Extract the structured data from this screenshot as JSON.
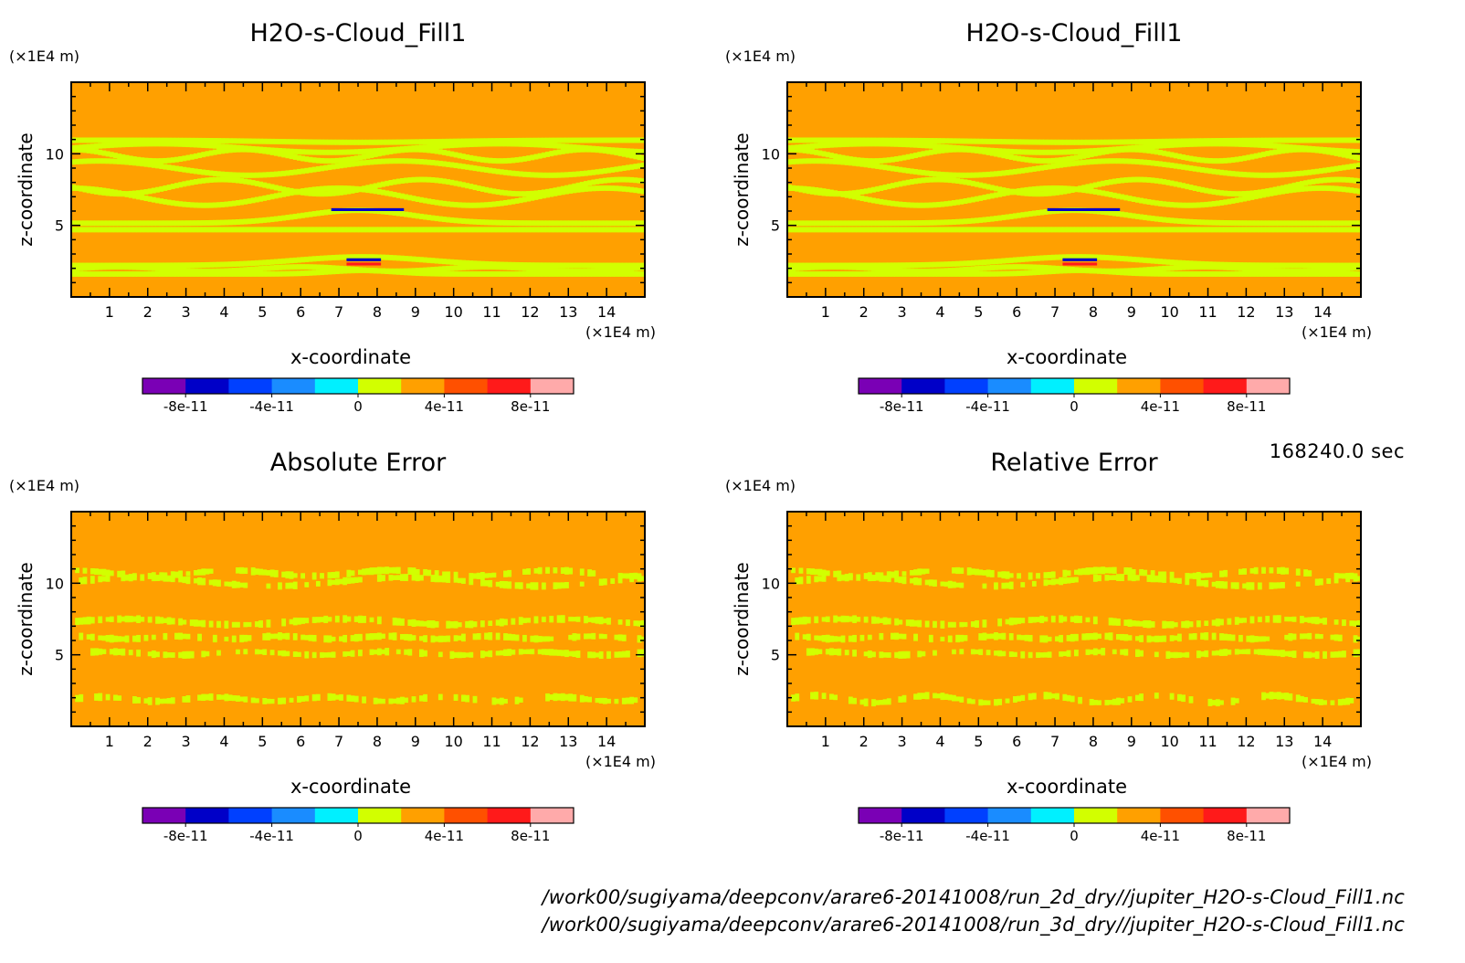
{
  "colorbar": {
    "colors": [
      "#7a00b5",
      "#0000c8",
      "#0040ff",
      "#1a8cff",
      "#00f0ff",
      "#d2ff00",
      "#ffa000",
      "#ff5000",
      "#ff1a1a",
      "#ffaaaa"
    ],
    "tick_labels": [
      "-8e-11",
      "-4e-11",
      "0",
      "4e-11",
      "8e-11"
    ]
  },
  "time_label": "168240.0 sec",
  "files": [
    "/work00/sugiyama/deepconv/arare6-20141008/run_2d_dry//jupiter_H2O-s-Cloud_Fill1.nc",
    "/work00/sugiyama/deepconv/arare6-20141008/run_3d_dry//jupiter_H2O-s-Cloud_Fill1.nc"
  ],
  "chart_data": [
    {
      "type": "heatmap",
      "title": "H2O-s-Cloud_Fill1",
      "xlabel": "x-coordinate",
      "xunit": "(×1E4 m)",
      "ylabel": "z-coordinate",
      "yunit": "(×1E4 m)",
      "xlim": [
        0,
        15
      ],
      "ylim": [
        0,
        15
      ],
      "xticks": [
        "1",
        "2",
        "3",
        "4",
        "5",
        "6",
        "7",
        "8",
        "9",
        "10",
        "11",
        "12",
        "13",
        "14"
      ],
      "yticks": [
        "5",
        "10"
      ],
      "background_value": 2e-11,
      "contour_value": 0,
      "field": "cloud",
      "extremes": [
        {
          "x": [
            6.8,
            8.7
          ],
          "z": [
            6.0,
            6.2
          ],
          "value": -8e-11
        },
        {
          "x": [
            7.2,
            8.1
          ],
          "z": [
            2.5,
            2.7
          ],
          "value": -8e-11
        },
        {
          "x": [
            7.2,
            8.1
          ],
          "z": [
            2.2,
            2.4
          ],
          "value": 6e-11
        }
      ]
    },
    {
      "type": "heatmap",
      "title": "H2O-s-Cloud_Fill1",
      "xlabel": "x-coordinate",
      "xunit": "(×1E4 m)",
      "ylabel": "z-coordinate",
      "yunit": "(×1E4 m)",
      "xlim": [
        0,
        15
      ],
      "ylim": [
        0,
        15
      ],
      "xticks": [
        "1",
        "2",
        "3",
        "4",
        "5",
        "6",
        "7",
        "8",
        "9",
        "10",
        "11",
        "12",
        "13",
        "14"
      ],
      "yticks": [
        "5",
        "10"
      ],
      "background_value": 2e-11,
      "contour_value": 0,
      "field": "cloud",
      "extremes": [
        {
          "x": [
            6.8,
            8.7
          ],
          "z": [
            6.0,
            6.2
          ],
          "value": -8e-11
        },
        {
          "x": [
            7.2,
            8.1
          ],
          "z": [
            2.5,
            2.7
          ],
          "value": -8e-11
        },
        {
          "x": [
            7.2,
            8.1
          ],
          "z": [
            2.2,
            2.4
          ],
          "value": 6e-11
        }
      ]
    },
    {
      "type": "heatmap",
      "title": "Absolute Error",
      "xlabel": "x-coordinate",
      "xunit": "(×1E4 m)",
      "ylabel": "z-coordinate",
      "yunit": "(×1E4 m)",
      "xlim": [
        0,
        15
      ],
      "ylim": [
        0,
        15
      ],
      "xticks": [
        "1",
        "2",
        "3",
        "4",
        "5",
        "6",
        "7",
        "8",
        "9",
        "10",
        "11",
        "12",
        "13",
        "14"
      ],
      "yticks": [
        "5",
        "10"
      ],
      "background_value": 2e-11,
      "contour_value": 0,
      "field": "abs_error"
    },
    {
      "type": "heatmap",
      "title": "Relative Error",
      "xlabel": "x-coordinate",
      "xunit": "(×1E4 m)",
      "ylabel": "z-coordinate",
      "yunit": "(×1E4 m)",
      "xlim": [
        0,
        15
      ],
      "ylim": [
        0,
        15
      ],
      "xticks": [
        "1",
        "2",
        "3",
        "4",
        "5",
        "6",
        "7",
        "8",
        "9",
        "10",
        "11",
        "12",
        "13",
        "14"
      ],
      "yticks": [
        "5",
        "10"
      ],
      "background_value": 2e-11,
      "contour_value": 0,
      "field": "rel_error"
    }
  ]
}
